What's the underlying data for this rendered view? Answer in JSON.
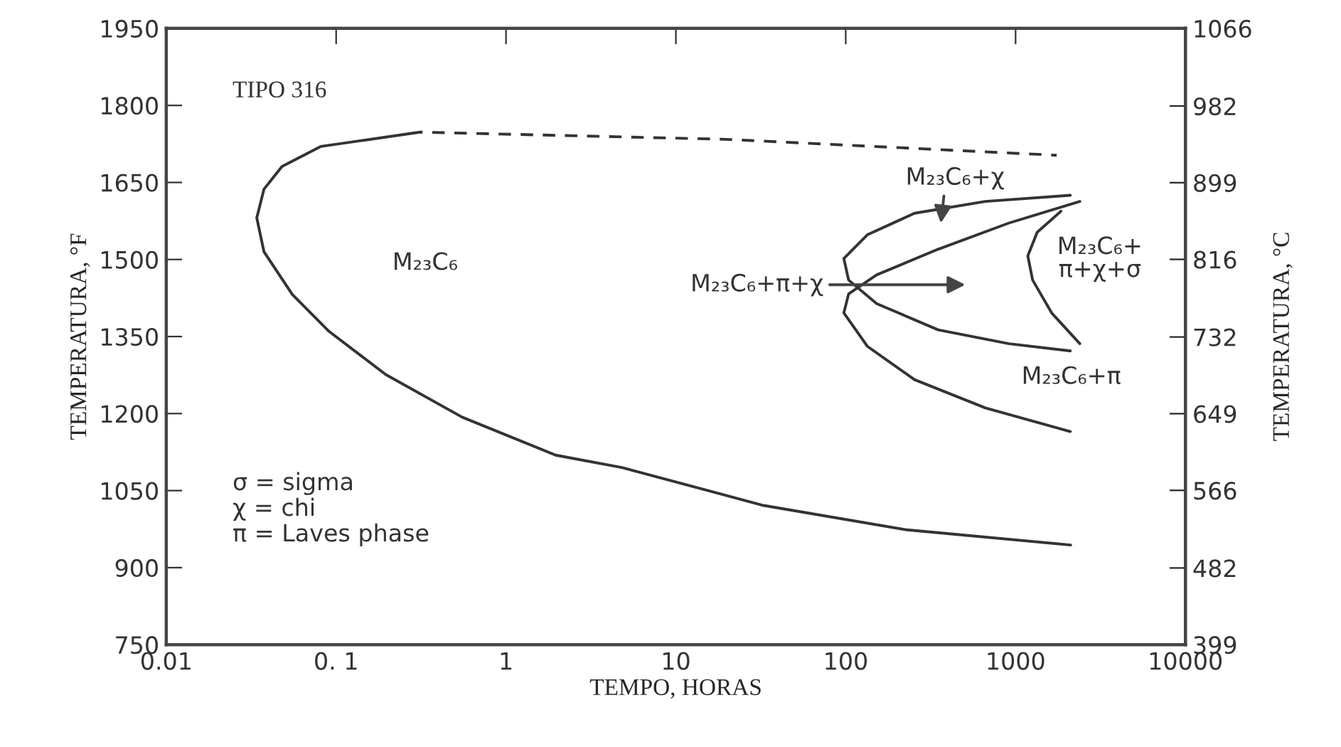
{
  "chart_data": {
    "type": "line",
    "xlabel": "TEMPO, HORAS",
    "ylabel": "TEMPERATURA, °F",
    "y2label": "TEMPERATURA, °C",
    "log": "x",
    "xlim": [
      0.01,
      10000
    ],
    "xticks": [
      0.01,
      {
        "value": 0.1,
        "label": "0. 1"
      },
      1,
      10,
      100,
      1000,
      10000
    ],
    "ylim": [
      750,
      1950
    ],
    "yticks": [
      750,
      900,
      1050,
      1200,
      1350,
      1500,
      1650,
      1800,
      1950
    ],
    "y2lim": [
      399,
      1066
    ],
    "y2ticks": [
      399,
      482,
      566,
      649,
      732,
      816,
      899,
      982,
      1066
    ],
    "grid": false,
    "marker": "none",
    "series": [
      {
        "color": "#333333",
        "line_style": "solid",
        "x": [
          0.311,
          0.081,
          0.048,
          0.0376,
          0.0341,
          0.0376,
          0.0552,
          0.0908,
          0.196,
          0.552,
          1.96,
          4.8,
          32.9,
          224,
          2110
        ],
        "values": [
          1748,
          1720,
          1681,
          1637,
          1581,
          1515,
          1432,
          1360,
          1276,
          1193,
          1119,
          1095,
          1021,
          974,
          944
        ]
      },
      {
        "color": "#333333",
        "line_style": "dashed",
        "x": [
          0.311,
          19.6,
          1745
        ],
        "values": [
          1748,
          1734,
          1703
        ]
      },
      {
        "color": "#333333",
        "line_style": "solid",
        "x": [
          2100,
          664,
          254,
          134,
          97.5,
          104,
          152,
          350,
          914,
          2100
        ],
        "values": [
          1625,
          1613,
          1590,
          1548,
          1502,
          1460,
          1414,
          1363,
          1336,
          1322
        ]
      },
      {
        "color": "#333333",
        "line_style": "solid",
        "x": [
          2390,
          914,
          350,
          152,
          104,
          97.5,
          134,
          254,
          664,
          2100
        ],
        "values": [
          1613,
          1571,
          1520,
          1470,
          1433,
          1396,
          1331,
          1266,
          1211,
          1165
        ]
      },
      {
        "color": "#333333",
        "line_style": "solid",
        "x": [
          1850,
          1340,
          1180,
          1260,
          1630,
          2390
        ],
        "values": [
          1594,
          1553,
          1507,
          1460,
          1396,
          1336
        ]
      }
    ],
    "annotations": [
      "TIPO 316",
      "σ = sigma\nχ = chi\nπ = Laves phase",
      "M₂₃C₆",
      "M₂₃C₆+π+χ",
      "M₂₃C₆+χ",
      "M₂₃C₆+\nπ+χ+σ",
      "M₂₃C₆+π"
    ]
  }
}
